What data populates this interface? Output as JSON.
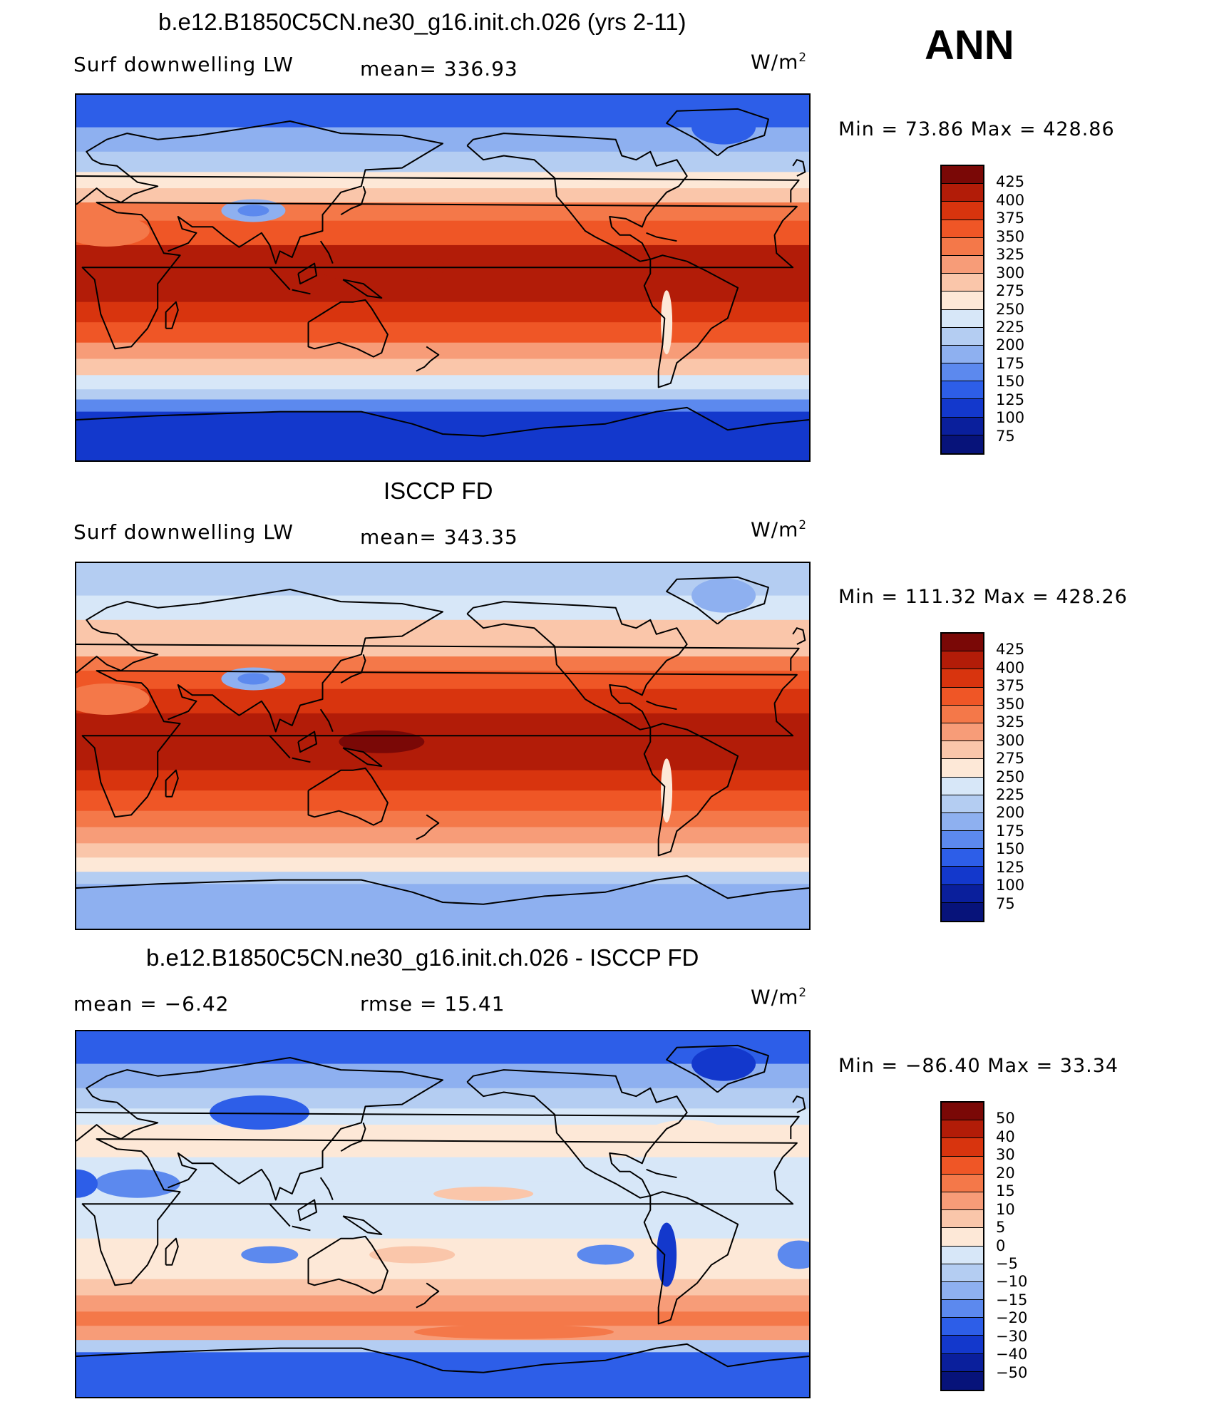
{
  "corner_label": "ANN",
  "panels": [
    {
      "title": "b.e12.B1850C5CN.ne30_g16.init.ch.026 (yrs 2-11)",
      "left_label": "Surf downwelling LW",
      "center_label": "mean= 336.93",
      "units": "W/m",
      "units_sup": "2",
      "minmax": "Min =   73.86 Max = 428.86",
      "scheme": "abs",
      "colorbar_labels": [
        "425",
        "400",
        "375",
        "350",
        "325",
        "300",
        "275",
        "250",
        "225",
        "200",
        "175",
        "150",
        "125",
        "100",
        "75"
      ]
    },
    {
      "title": "ISCCP FD",
      "left_label": "Surf downwelling LW",
      "center_label": "mean= 343.35",
      "units": "W/m",
      "units_sup": "2",
      "minmax": "Min = 111.32 Max = 428.26",
      "scheme": "abs",
      "colorbar_labels": [
        "425",
        "400",
        "375",
        "350",
        "325",
        "300",
        "275",
        "250",
        "225",
        "200",
        "175",
        "150",
        "125",
        "100",
        "75"
      ]
    },
    {
      "title": "b.e12.B1850C5CN.ne30_g16.init.ch.026 - ISCCP FD",
      "left_label": "mean =   −6.42",
      "center_label": "rmse =   15.41",
      "units": "W/m",
      "units_sup": "2",
      "minmax": "Min = −86.40 Max =   33.34",
      "scheme": "diff",
      "colorbar_labels": [
        "50",
        "40",
        "30",
        "20",
        "15",
        "10",
        "5",
        "0",
        "−5",
        "−10",
        "−15",
        "−20",
        "−30",
        "−40",
        "−50"
      ]
    }
  ],
  "colors": {
    "scale": [
      "#7a0806",
      "#b21c08",
      "#d8340e",
      "#ef5626",
      "#f47849",
      "#f79c78",
      "#fac6aa",
      "#fde8d7",
      "#d7e7f8",
      "#b4cdf2",
      "#8eb0f0",
      "#5c89ee",
      "#2d5ee8",
      "#1338cc",
      "#0a1f9c",
      "#07137a"
    ],
    "coast": "#000000"
  }
}
